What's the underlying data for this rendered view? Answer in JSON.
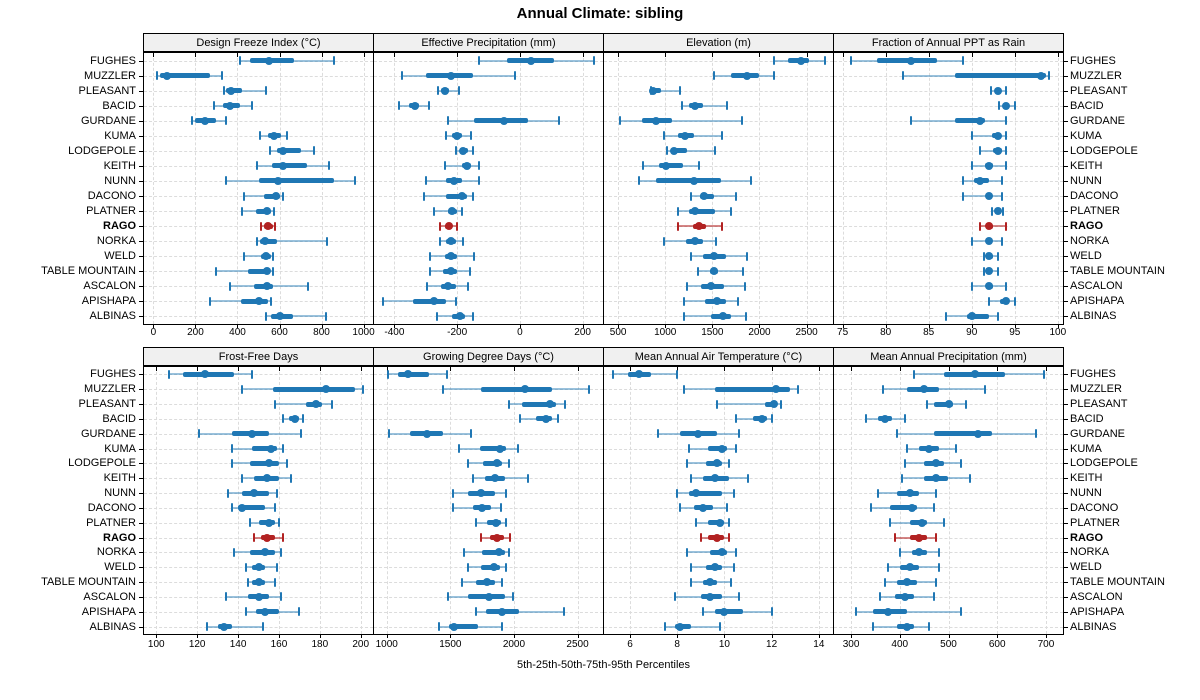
{
  "title": "Annual Climate: sibling",
  "xlabel": "5th-25th-50th-75th-95th Percentiles",
  "highlight_station": "RAGO",
  "colors": {
    "series": "#1f77b4",
    "series_light": "rgba(31,119,180,0.45)",
    "highlight": "#b22222",
    "highlight_light": "rgba(178,34,34,0.55)",
    "grid": "#dcdcdc",
    "header_bg": "#f0f0f0",
    "border": "#000000"
  },
  "stations": [
    "FUGHES",
    "MUZZLER",
    "PLEASANT",
    "BACID",
    "GURDANE",
    "KUMA",
    "LODGEPOLE",
    "KEITH",
    "NUNN",
    "DACONO",
    "PLATNER",
    "RAGO",
    "NORKA",
    "WELD",
    "TABLE MOUNTAIN",
    "ASCALON",
    "APISHAPA",
    "ALBINAS"
  ],
  "chart_data": {
    "type": "dot-whisker-percentile-trellis",
    "percentiles": [
      5,
      25,
      50,
      75,
      95
    ],
    "rows": [
      "FUGHES",
      "MUZZLER",
      "PLEASANT",
      "BACID",
      "GURDANE",
      "KUMA",
      "LODGEPOLE",
      "KEITH",
      "NUNN",
      "DACONO",
      "PLATNER",
      "RAGO",
      "NORKA",
      "WELD",
      "TABLE MOUNTAIN",
      "ASCALON",
      "APISHAPA",
      "ALBINAS"
    ],
    "panels": [
      {
        "title": "Design Freeze Index (°C)",
        "xlim": [
          -45,
          1045
        ],
        "ticks": [
          0,
          200,
          400,
          600,
          800,
          1000
        ],
        "values": [
          [
            410,
            460,
            550,
            670,
            860
          ],
          [
            15,
            30,
            65,
            270,
            325
          ],
          [
            335,
            345,
            370,
            420,
            535
          ],
          [
            290,
            330,
            365,
            410,
            470
          ],
          [
            185,
            200,
            245,
            300,
            345
          ],
          [
            505,
            545,
            575,
            605,
            635
          ],
          [
            555,
            590,
            615,
            700,
            765
          ],
          [
            495,
            565,
            615,
            730,
            835
          ],
          [
            345,
            500,
            595,
            860,
            960
          ],
          [
            430,
            525,
            585,
            600,
            615
          ],
          [
            420,
            490,
            540,
            560,
            575
          ],
          [
            510,
            525,
            545,
            570,
            580
          ],
          [
            495,
            505,
            530,
            590,
            825
          ],
          [
            430,
            510,
            535,
            560,
            570
          ],
          [
            300,
            450,
            540,
            555,
            570
          ],
          [
            365,
            480,
            540,
            570,
            735
          ],
          [
            270,
            415,
            500,
            545,
            560
          ],
          [
            535,
            560,
            600,
            665,
            820
          ]
        ]
      },
      {
        "title": "Effective Precipitation (mm)",
        "xlim": [
          -465,
          265
        ],
        "ticks": [
          -400,
          -200,
          0,
          200
        ],
        "values": [
          [
            -130,
            -40,
            35,
            110,
            235
          ],
          [
            -375,
            -300,
            -220,
            -150,
            -15
          ],
          [
            -260,
            -250,
            -238,
            -225,
            -195
          ],
          [
            -385,
            -355,
            -335,
            -320,
            -290
          ],
          [
            -230,
            -145,
            -50,
            25,
            125
          ],
          [
            -235,
            -215,
            -200,
            -185,
            -155
          ],
          [
            -205,
            -190,
            -180,
            -165,
            -150
          ],
          [
            -240,
            -185,
            -170,
            -155,
            -130
          ],
          [
            -300,
            -235,
            -210,
            -185,
            -130
          ],
          [
            -305,
            -235,
            -185,
            -170,
            -150
          ],
          [
            -275,
            -230,
            -215,
            -200,
            -185
          ],
          [
            -255,
            -240,
            -225,
            -215,
            -200
          ],
          [
            -255,
            -235,
            -220,
            -205,
            -180
          ],
          [
            -285,
            -240,
            -220,
            -200,
            -145
          ],
          [
            -285,
            -245,
            -220,
            -200,
            -160
          ],
          [
            -295,
            -250,
            -230,
            -205,
            -165
          ],
          [
            -435,
            -340,
            -275,
            -235,
            -205
          ],
          [
            -265,
            -215,
            -190,
            -175,
            -150
          ]
        ]
      },
      {
        "title": "Elevation (m)",
        "xlim": [
          350,
          2780
        ],
        "ticks": [
          500,
          1000,
          1500,
          2000,
          2500
        ],
        "values": [
          [
            2150,
            2300,
            2440,
            2530,
            2700
          ],
          [
            1520,
            1700,
            1870,
            2000,
            2150
          ],
          [
            845,
            850,
            865,
            960,
            1160
          ],
          [
            1180,
            1250,
            1320,
            1400,
            1650
          ],
          [
            520,
            750,
            900,
            1070,
            1810
          ],
          [
            990,
            1130,
            1210,
            1300,
            1600
          ],
          [
            1020,
            1060,
            1090,
            1230,
            1530
          ],
          [
            760,
            930,
            1010,
            1190,
            1360
          ],
          [
            720,
            900,
            1300,
            1590,
            1910
          ],
          [
            1270,
            1370,
            1410,
            1520,
            1750
          ],
          [
            1140,
            1250,
            1320,
            1530,
            1700
          ],
          [
            1130,
            1290,
            1360,
            1430,
            1600
          ],
          [
            990,
            1220,
            1320,
            1400,
            1540
          ],
          [
            1270,
            1400,
            1520,
            1650,
            1870
          ],
          [
            1350,
            1470,
            1520,
            1560,
            1830
          ],
          [
            1230,
            1380,
            1490,
            1620,
            1850
          ],
          [
            1200,
            1420,
            1550,
            1640,
            1770
          ],
          [
            1200,
            1490,
            1610,
            1700,
            1860
          ]
        ]
      },
      {
        "title": "Fraction of Annual PPT as Rain",
        "xlim": [
          74,
          100.6
        ],
        "ticks": [
          75,
          80,
          85,
          90,
          95,
          100
        ],
        "values": [
          [
            76,
            79,
            83,
            86,
            89
          ],
          [
            82,
            88,
            98,
            98.6,
            99
          ],
          [
            92.2,
            92.7,
            93,
            93.4,
            94
          ],
          [
            93.2,
            93.7,
            94,
            94.3,
            95
          ],
          [
            83,
            88,
            91,
            91.5,
            94
          ],
          [
            90,
            92.3,
            93,
            93.3,
            94
          ],
          [
            91,
            92.5,
            93,
            93.5,
            94
          ],
          [
            90,
            91.5,
            92,
            92.5,
            94
          ],
          [
            89,
            90.3,
            91,
            92,
            93.5
          ],
          [
            89,
            91.7,
            92,
            92.3,
            93.5
          ],
          [
            92.4,
            92.8,
            93,
            93.3,
            93.6
          ],
          [
            91,
            91.7,
            92,
            92.5,
            94
          ],
          [
            90,
            91.6,
            92,
            92.4,
            93.5
          ],
          [
            91.4,
            91.8,
            92,
            92.5,
            93
          ],
          [
            91.4,
            91.8,
            92,
            92.3,
            93
          ],
          [
            90,
            91.6,
            92,
            92.5,
            94
          ],
          [
            92,
            93.3,
            94,
            94.3,
            95
          ],
          [
            87,
            89.5,
            90,
            92,
            93
          ]
        ]
      },
      {
        "title": "Frost-Free Days",
        "xlim": [
          94,
          206
        ],
        "ticks": [
          100,
          120,
          140,
          160,
          180,
          200
        ],
        "values": [
          [
            106,
            113,
            124,
            138,
            147
          ],
          [
            142,
            157,
            183,
            197,
            201
          ],
          [
            158,
            173,
            178,
            181,
            186
          ],
          [
            162,
            165,
            168,
            170,
            172
          ],
          [
            121,
            137,
            147,
            155,
            171
          ],
          [
            137,
            147,
            156,
            159,
            162
          ],
          [
            137,
            146,
            155,
            160,
            164
          ],
          [
            142,
            148,
            154,
            160,
            166
          ],
          [
            135,
            142,
            148,
            155,
            159
          ],
          [
            137,
            140,
            142,
            153,
            158
          ],
          [
            146,
            150,
            155,
            158,
            160
          ],
          [
            148,
            151,
            154,
            158,
            162
          ],
          [
            138,
            146,
            153,
            158,
            161
          ],
          [
            144,
            147,
            150,
            153,
            159
          ],
          [
            145,
            147,
            150,
            153,
            158
          ],
          [
            134,
            145,
            150,
            155,
            161
          ],
          [
            144,
            149,
            153,
            160,
            170
          ],
          [
            125,
            130,
            133,
            137,
            152
          ]
        ]
      },
      {
        "title": "Growing Degree Days (°C)",
        "xlim": [
          900,
          2700
        ],
        "ticks": [
          1000,
          1500,
          2000,
          2500
        ],
        "values": [
          [
            1010,
            1090,
            1170,
            1330,
            1470
          ],
          [
            1440,
            1740,
            2090,
            2300,
            2590
          ],
          [
            1960,
            2060,
            2280,
            2330,
            2400
          ],
          [
            2050,
            2170,
            2250,
            2300,
            2350
          ],
          [
            1020,
            1180,
            1320,
            1440,
            1660
          ],
          [
            1570,
            1730,
            1890,
            1940,
            2030
          ],
          [
            1640,
            1760,
            1870,
            1910,
            1960
          ],
          [
            1680,
            1770,
            1850,
            1930,
            2110
          ],
          [
            1520,
            1640,
            1740,
            1850,
            1940
          ],
          [
            1520,
            1680,
            1750,
            1820,
            1900
          ],
          [
            1700,
            1790,
            1860,
            1900,
            1940
          ],
          [
            1740,
            1810,
            1870,
            1920,
            1970
          ],
          [
            1610,
            1750,
            1880,
            1930,
            1960
          ],
          [
            1640,
            1740,
            1840,
            1890,
            1940
          ],
          [
            1590,
            1700,
            1790,
            1850,
            1910
          ],
          [
            1480,
            1640,
            1800,
            1930,
            1990
          ],
          [
            1700,
            1780,
            1910,
            2040,
            2390
          ],
          [
            1410,
            1490,
            1530,
            1720,
            1910
          ]
        ]
      },
      {
        "title": "Mean Annual Air Temperature (°C)",
        "xlim": [
          4.9,
          14.6
        ],
        "ticks": [
          6,
          8,
          10,
          12,
          14
        ],
        "values": [
          [
            5.3,
            5.9,
            6.4,
            6.9,
            8.0
          ],
          [
            8.3,
            9.6,
            12.2,
            12.8,
            13.1
          ],
          [
            9.7,
            11.7,
            12.1,
            12.2,
            12.4
          ],
          [
            10.5,
            11.2,
            11.6,
            11.8,
            12.0
          ],
          [
            7.2,
            8.1,
            8.9,
            9.7,
            10.6
          ],
          [
            8.5,
            9.3,
            9.9,
            10.1,
            10.5
          ],
          [
            8.4,
            9.2,
            9.7,
            9.9,
            10.2
          ],
          [
            8.6,
            9.1,
            9.6,
            10.2,
            11.0
          ],
          [
            8.0,
            8.5,
            8.8,
            9.9,
            10.4
          ],
          [
            8.1,
            8.7,
            9.1,
            9.5,
            10.1
          ],
          [
            8.8,
            9.3,
            9.8,
            10.0,
            10.2
          ],
          [
            9.0,
            9.3,
            9.7,
            10.0,
            10.2
          ],
          [
            8.4,
            9.4,
            9.9,
            10.1,
            10.5
          ],
          [
            8.6,
            9.2,
            9.6,
            9.9,
            10.4
          ],
          [
            8.6,
            9.1,
            9.4,
            9.7,
            10.3
          ],
          [
            7.9,
            9.0,
            9.4,
            9.9,
            10.6
          ],
          [
            9.1,
            9.6,
            10.0,
            10.8,
            12.0
          ],
          [
            7.5,
            7.9,
            8.1,
            8.6,
            9.8
          ]
        ]
      },
      {
        "title": "Mean Annual Precipitation (mm)",
        "xlim": [
          265,
          735
        ],
        "ticks": [
          300,
          400,
          500,
          600,
          700
        ],
        "values": [
          [
            430,
            490,
            555,
            615,
            695
          ],
          [
            365,
            415,
            450,
            480,
            575
          ],
          [
            455,
            470,
            500,
            510,
            535
          ],
          [
            330,
            355,
            370,
            385,
            410
          ],
          [
            395,
            470,
            560,
            590,
            680
          ],
          [
            415,
            440,
            460,
            480,
            515
          ],
          [
            410,
            450,
            475,
            490,
            525
          ],
          [
            405,
            450,
            475,
            500,
            545
          ],
          [
            355,
            395,
            420,
            440,
            475
          ],
          [
            340,
            380,
            425,
            435,
            470
          ],
          [
            380,
            420,
            445,
            455,
            490
          ],
          [
            390,
            420,
            440,
            455,
            475
          ],
          [
            400,
            425,
            440,
            455,
            480
          ],
          [
            375,
            400,
            420,
            440,
            480
          ],
          [
            370,
            395,
            415,
            435,
            475
          ],
          [
            360,
            390,
            410,
            430,
            470
          ],
          [
            310,
            345,
            375,
            415,
            525
          ],
          [
            345,
            395,
            415,
            430,
            460
          ]
        ]
      }
    ]
  }
}
